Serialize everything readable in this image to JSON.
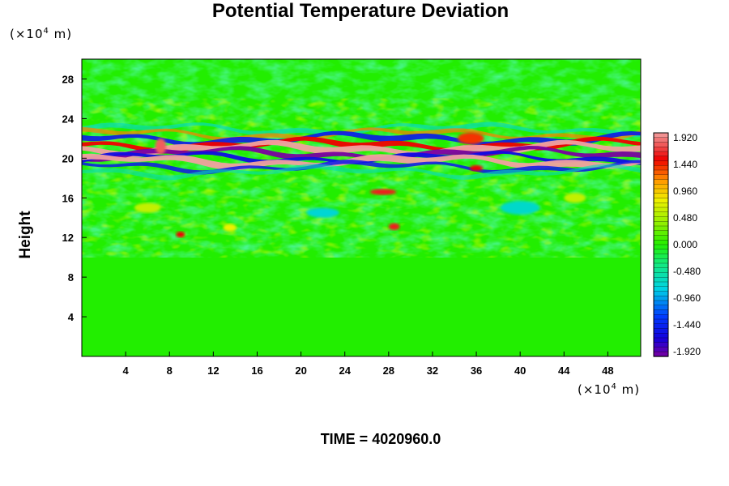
{
  "chart_data": {
    "type": "heatmap",
    "title": "Potential Temperature Deviation",
    "ylabel": "Height",
    "x_unit_prefix": "(×10",
    "x_unit_exp": "4",
    "x_unit_suffix": " m)",
    "y_unit_prefix": "(×10",
    "y_unit_exp": "4",
    "y_unit_suffix": " m)",
    "xlim": [
      0,
      51
    ],
    "ylim": [
      0,
      30
    ],
    "x_ticks": [
      "4",
      "8",
      "12",
      "16",
      "20",
      "24",
      "28",
      "32",
      "36",
      "40",
      "44",
      "48"
    ],
    "y_ticks": [
      "4",
      "8",
      "12",
      "16",
      "20",
      "24",
      "28"
    ],
    "colorbar_labels": [
      "1.920",
      "1.440",
      "0.960",
      "0.480",
      "0.000",
      "-0.480",
      "-0.960",
      "-1.440",
      "-1.920"
    ],
    "colorbar_range": [
      -1.92,
      1.92
    ],
    "footer": "TIME = 4020960.0",
    "colors": {
      "background": "#22ee00",
      "colormap_low": "#7a00a0",
      "colormap_high": "#f2a0a0"
    }
  }
}
